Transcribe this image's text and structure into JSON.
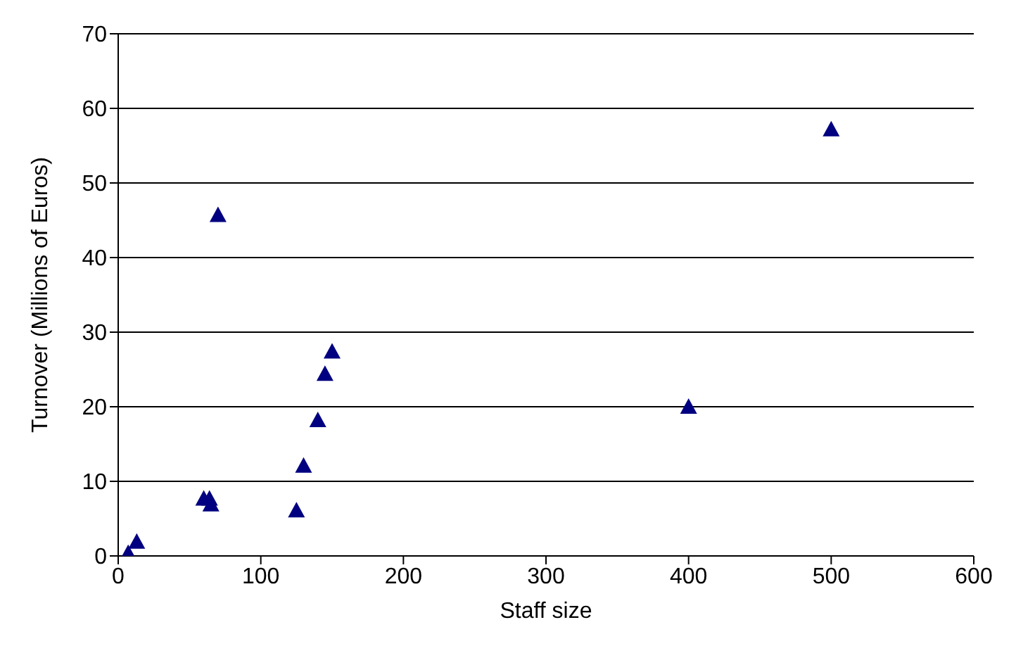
{
  "chart_data": {
    "type": "scatter",
    "xlabel": "Staff size",
    "ylabel": "Turnover (Millions of Euros)",
    "x": [
      7,
      13,
      60,
      64,
      65,
      70,
      125,
      130,
      140,
      145,
      150,
      400,
      500
    ],
    "values": [
      0.4,
      1.9,
      7.7,
      7.7,
      6.9,
      45.7,
      6.1,
      12.1,
      18.2,
      24.4,
      27.4,
      20,
      57.2
    ],
    "color": "#000080",
    "marker": "triangle",
    "xlim": [
      0,
      600
    ],
    "xticks": [
      0,
      100,
      200,
      300,
      400,
      500,
      600
    ],
    "ylim": [
      0,
      70
    ],
    "yticks": [
      0,
      10,
      20,
      30,
      40,
      50,
      60,
      70
    ],
    "grid": "y",
    "legend": false
  }
}
